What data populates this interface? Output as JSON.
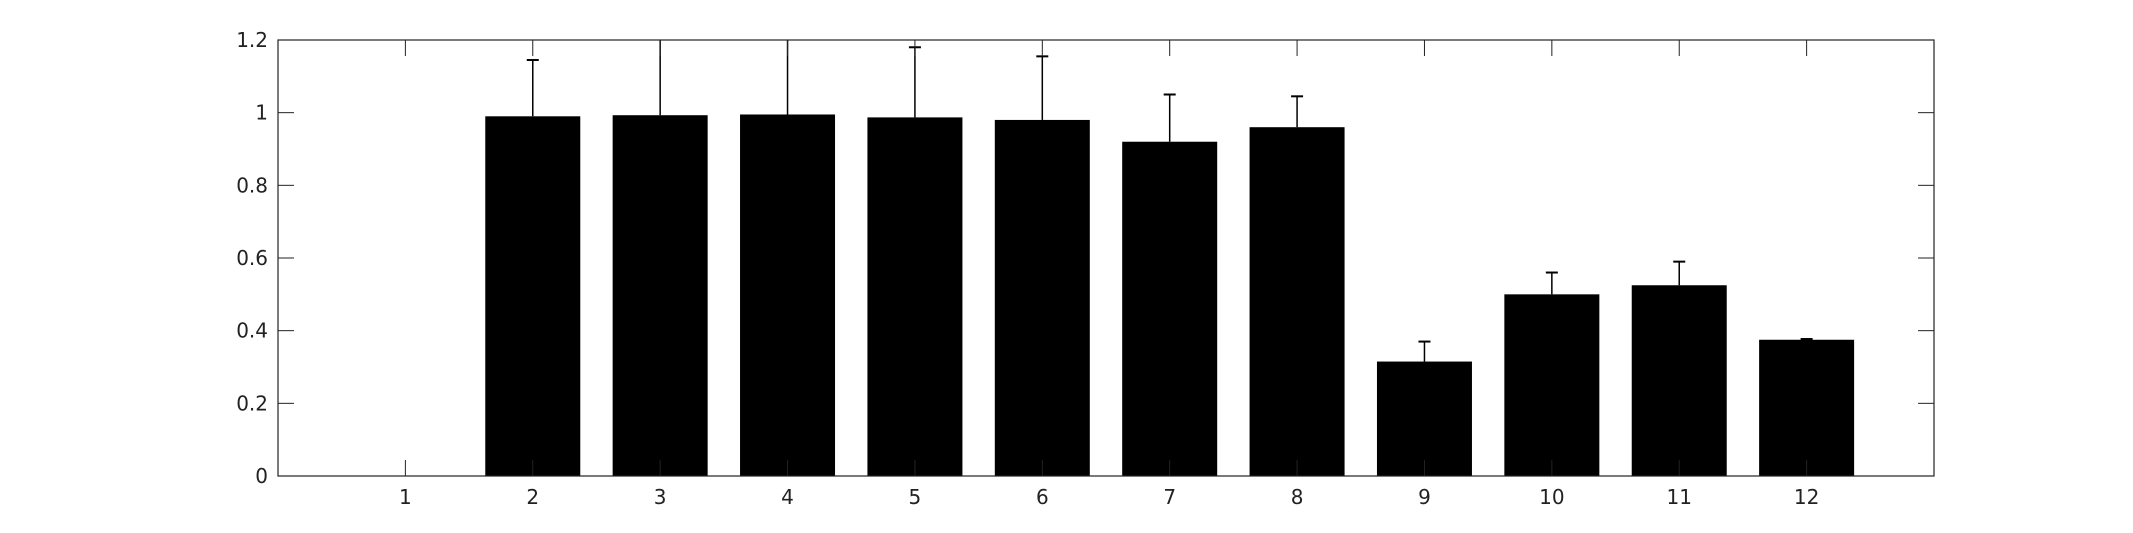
{
  "chart_data": {
    "type": "bar",
    "title": "",
    "xlabel": "",
    "ylabel": "",
    "categories": [
      "1",
      "2",
      "3",
      "4",
      "5",
      "6",
      "7",
      "8",
      "9",
      "10",
      "11",
      "12"
    ],
    "values": [
      0,
      0.99,
      0.993,
      0.995,
      0.987,
      0.98,
      0.92,
      0.96,
      0.315,
      0.5,
      0.525,
      0.375
    ],
    "error_upper": [
      null,
      1.145,
      1.26,
      1.26,
      1.18,
      1.155,
      1.05,
      1.045,
      0.37,
      0.56,
      0.59,
      0.377
    ],
    "xlim": [
      0,
      13
    ],
    "ylim": [
      0,
      1.2
    ],
    "yticks": [
      0,
      0.2,
      0.4,
      0.6,
      0.8,
      1,
      1.2
    ],
    "ytick_labels": [
      "0",
      "0.2",
      "0.4",
      "0.6",
      "0.8",
      "1",
      "1.2"
    ],
    "grid": false,
    "legend": "none",
    "colors": {
      "bar": "#000000",
      "axis": "#222222",
      "error": "#000000"
    }
  }
}
